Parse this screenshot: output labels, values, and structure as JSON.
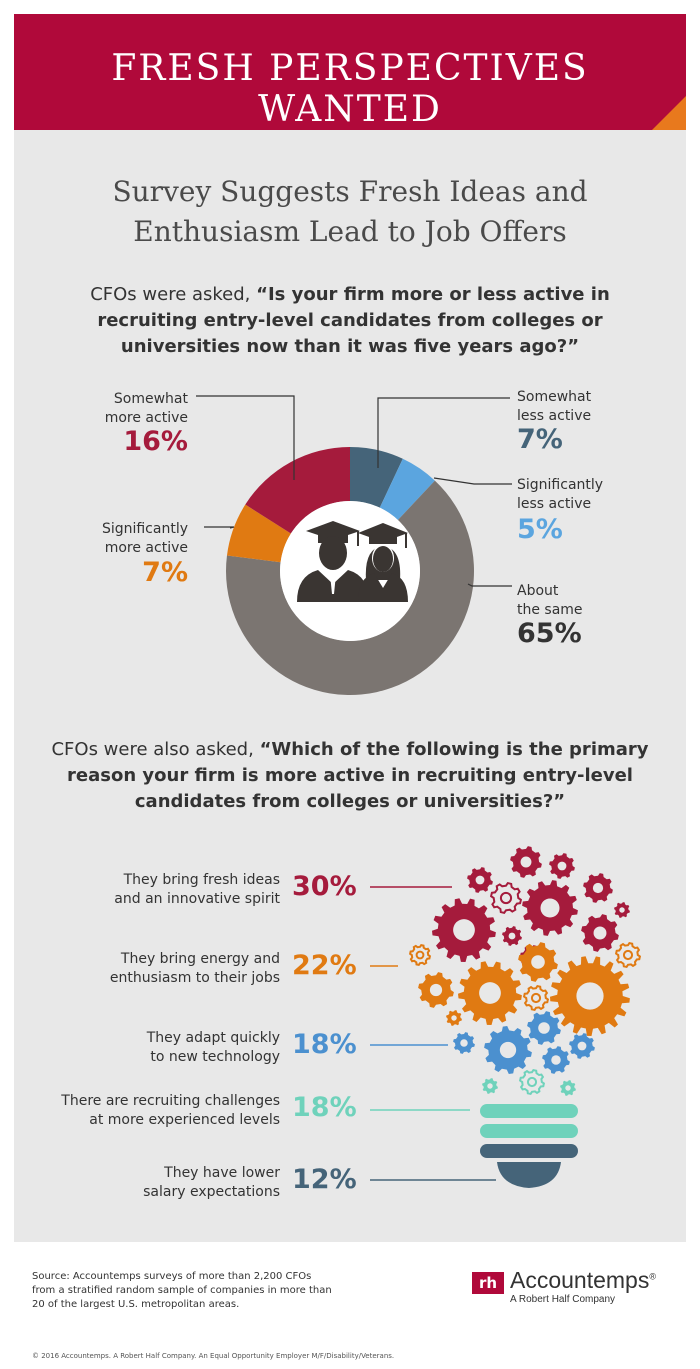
{
  "banner": {
    "title": "FRESH PERSPECTIVES WANTED"
  },
  "headline": {
    "line1": "Survey Suggests Fresh Ideas and",
    "line2": "Enthusiasm Lead to Job Offers"
  },
  "question1": {
    "prefix": "CFOs were asked, ",
    "quote": "“Is your firm more or less active in recruiting entry-level candidates from colleges or universities now than it was five years ago?”"
  },
  "question2": {
    "prefix": "CFOs were also asked, ",
    "quote": "“Which of the following is the primary reason your firm is more active in recruiting entry-level candidates from colleges or universities?”"
  },
  "colors": {
    "crimson": "#a51b3c",
    "orange": "#e07a12",
    "gray": "#7b7571",
    "slate": "#456479",
    "skyblue": "#5ba5df",
    "teal": "#6fd2bb",
    "blue": "#4b90cf"
  },
  "chart_data": [
    {
      "type": "pie",
      "style": "donut",
      "slices": [
        {
          "label": "Somewhat less active",
          "value": 7,
          "display": "7%",
          "color": "#456479"
        },
        {
          "label": "Significantly less active",
          "value": 5,
          "display": "5%",
          "color": "#5ba5df"
        },
        {
          "label": "About the same",
          "value": 65,
          "display": "65%",
          "color": "#7b7571"
        },
        {
          "label": "Significantly more active",
          "value": 7,
          "display": "7%",
          "color": "#e07a12"
        },
        {
          "label": "Somewhat more active",
          "value": 16,
          "display": "16%",
          "color": "#a51b3c"
        }
      ],
      "center_icon": "graduates-icon"
    },
    {
      "type": "bar",
      "style": "labeled list with gear lightbulb illustration",
      "categories": [
        "They bring fresh ideas and an innovative spirit",
        "They bring energy and enthusiasm to their jobs",
        "They adapt quickly to new technology",
        "There are recruiting challenges at more experienced levels",
        "They have lower salary expectations"
      ],
      "values": [
        30,
        22,
        18,
        18,
        12
      ],
      "display": [
        "30%",
        "22%",
        "18%",
        "18%",
        "12%"
      ],
      "colors": [
        "#a51b3c",
        "#e07a12",
        "#4b90cf",
        "#6fd2bb",
        "#456479"
      ]
    }
  ],
  "pie_labels": {
    "somewhat_less": {
      "text1": "Somewhat",
      "text2": "less active"
    },
    "significantly_less": {
      "text1": "Significantly",
      "text2": "less active"
    },
    "about_same": {
      "text1": "About",
      "text2": "the same"
    },
    "significantly_more": {
      "text1": "Significantly",
      "text2": "more active"
    },
    "somewhat_more": {
      "text1": "Somewhat",
      "text2": "more active"
    }
  },
  "reasons": [
    {
      "line1": "They bring fresh ideas",
      "line2": "and an innovative spirit"
    },
    {
      "line1": "They bring energy and",
      "line2": "enthusiasm to their jobs"
    },
    {
      "line1": "They adapt quickly",
      "line2": "to new technology"
    },
    {
      "line1": "There are recruiting challenges",
      "line2": "at more experienced levels"
    },
    {
      "line1": "They have lower",
      "line2": "salary expectations"
    }
  ],
  "footer": {
    "source": "Source: Accountemps surveys of more than 2,200 CFOs from a stratified random sample of companies in more than 20 of the largest U.S. metropolitan areas.",
    "copyright": "© 2016 Accountemps. A Robert Half Company. An Equal Opportunity Employer M/F/Disability/Veterans.",
    "logo_mark": "rh",
    "logo_name": "Accountemps",
    "logo_reg": "®",
    "logo_sub": "A Robert Half Company"
  }
}
